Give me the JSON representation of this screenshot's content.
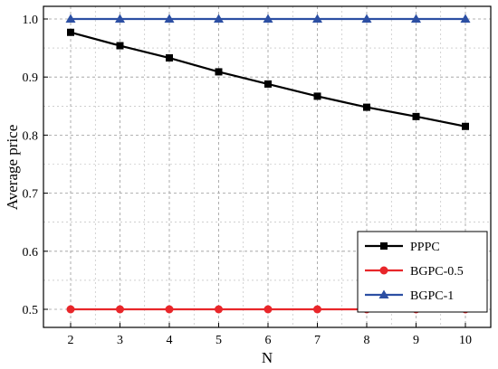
{
  "chart_data": {
    "type": "line",
    "xlabel": "N",
    "ylabel": "Average price",
    "x": [
      2,
      3,
      4,
      5,
      6,
      7,
      8,
      9,
      10
    ],
    "xlim": [
      2,
      10
    ],
    "ylim": [
      0.5,
      1.0
    ],
    "xticks": [
      2,
      3,
      4,
      5,
      6,
      7,
      8,
      9,
      10
    ],
    "yticks": [
      "0.5",
      "0.6",
      "0.7",
      "0.8",
      "0.9",
      "1.0"
    ],
    "grid": true,
    "legend_position": "bottom-right",
    "series": [
      {
        "name": "PPPC",
        "color": "#000000",
        "marker": "square",
        "values": [
          0.977,
          0.954,
          0.933,
          0.909,
          0.888,
          0.867,
          0.848,
          0.832,
          0.815
        ]
      },
      {
        "name": "BGPC-0.5",
        "color": "#e8262a",
        "marker": "circle",
        "values": [
          0.5,
          0.5,
          0.5,
          0.5,
          0.5,
          0.5,
          0.5,
          0.5,
          0.5
        ]
      },
      {
        "name": "BGPC-1",
        "color": "#2c4fa3",
        "marker": "triangle",
        "values": [
          1.0,
          1.0,
          1.0,
          1.0,
          1.0,
          1.0,
          1.0,
          1.0,
          1.0
        ]
      }
    ]
  }
}
